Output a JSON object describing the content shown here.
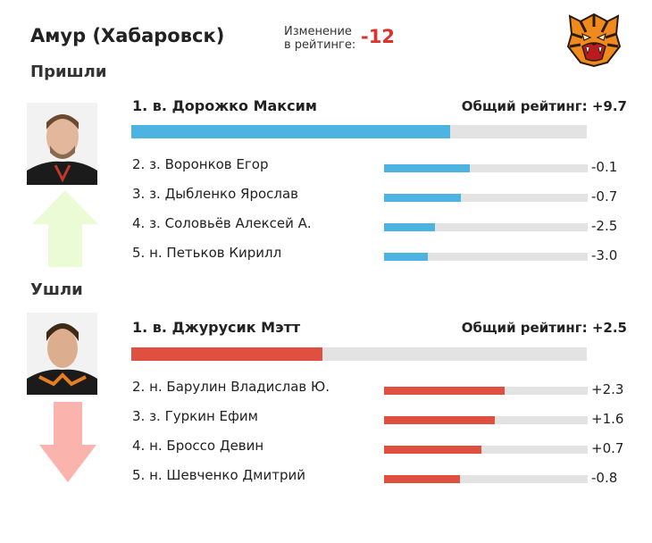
{
  "header": {
    "team": "Амур (Хабаровск)",
    "change_label": "Изменение в рейтинге:",
    "change_value": "-12"
  },
  "colors": {
    "incoming": "#4db3e0",
    "outgoing": "#e05040",
    "up_arrow": "#eafbd6",
    "down_arrow": "#fbb4ad"
  },
  "icons": {
    "logo": "tiger-logo-icon",
    "up": "arrow-up-icon",
    "down": "arrow-down-icon"
  },
  "chart_data": [
    {
      "type": "bar",
      "section": "Пришли",
      "main": {
        "label": "1. в. Дорожко Максим",
        "total_label": "Общий рейтинг: +9.7",
        "value": 0.7
      },
      "categories": [
        "2. з. Воронков Егор",
        "3. з. Дыбленко Ярослав",
        "4. з. Соловьёв Алексей А.",
        "5. н. Петьков Кирилл"
      ],
      "values": [
        -0.1,
        -0.7,
        -2.5,
        -3.0
      ],
      "value_labels": [
        "-0.1",
        "-0.7",
        "-2.5",
        "-3.0"
      ]
    },
    {
      "type": "bar",
      "section": "Ушли",
      "main": {
        "label": "1. в. Джурусик Мэтт",
        "total_label": "Общий рейтинг: +2.5",
        "value": 0.42
      },
      "categories": [
        "2. н. Барулин Владислав Ю.",
        "3. з. Гуркин Ефим",
        "4. н. Броссо Девин",
        "5. н. Шевченко Дмитрий"
      ],
      "values": [
        2.3,
        1.6,
        0.7,
        -0.8
      ],
      "value_labels": [
        "+2.3",
        "+1.6",
        "+0.7",
        "-0.8"
      ]
    }
  ]
}
